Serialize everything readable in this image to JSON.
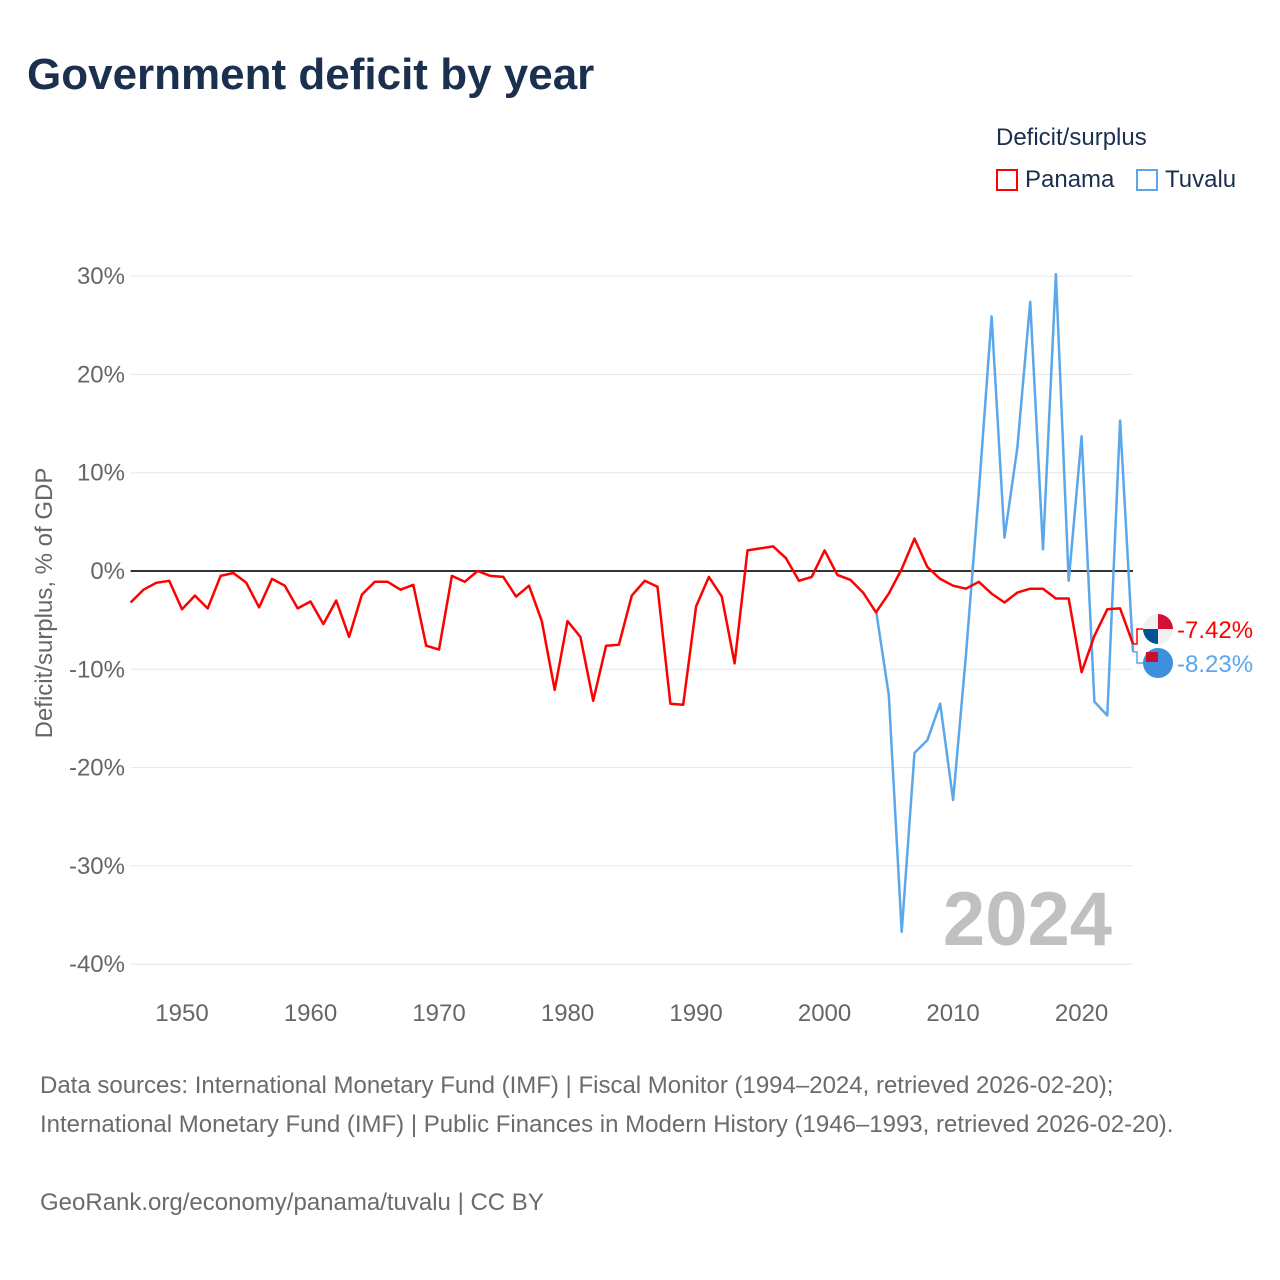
{
  "title": "Government deficit by year",
  "legend": {
    "title": "Deficit/surplus",
    "items": [
      {
        "label": "Panama",
        "color": "#ff0000"
      },
      {
        "label": "Tuvalu",
        "color": "#5ba7ea"
      }
    ]
  },
  "footer": {
    "sources": "Data sources: International Monetary Fund (IMF) | Fiscal Monitor (1994–2024, retrieved 2026-02-20); International Monetary Fund (IMF) | Public Finances in Modern History (1946–1993, retrieved 2026-02-20).",
    "credit": "GeoRank.org/economy/panama/tuvalu | CC BY"
  },
  "chart_data": {
    "type": "line",
    "title": "Government deficit by year",
    "xlabel": "",
    "ylabel": "Deficit/surplus, % of GDP",
    "xlim": [
      1946,
      2024
    ],
    "ylim": [
      -40,
      30
    ],
    "xticks": [
      1950,
      1960,
      1970,
      1980,
      1990,
      2000,
      2010,
      2020
    ],
    "yticks": [
      30,
      20,
      10,
      0,
      -10,
      -20,
      -30,
      -40
    ],
    "ytick_labels": [
      "30%",
      "20%",
      "10%",
      "0%",
      "-10%",
      "-20%",
      "-30%",
      "-40%"
    ],
    "watermark_year": "2024",
    "grid": true,
    "legend_position": "top-right",
    "series": [
      {
        "name": "Panama",
        "color": "#ff0000",
        "end_label": "-7.42%",
        "start_year": 1946,
        "values": [
          -3.2,
          -1.9,
          -1.2,
          -1.0,
          -3.9,
          -2.5,
          -3.8,
          -0.5,
          -0.2,
          -1.2,
          -3.7,
          -0.8,
          -1.5,
          -3.8,
          -3.1,
          -5.4,
          -3.0,
          -6.7,
          -2.4,
          -1.1,
          -1.1,
          -1.9,
          -1.4,
          -7.6,
          -8.0,
          -0.5,
          -1.1,
          0.0,
          -0.5,
          -0.6,
          -2.6,
          -1.5,
          -5.1,
          -12.1,
          -5.1,
          -6.7,
          -13.2,
          -7.6,
          -7.5,
          -2.5,
          -1.0,
          -1.6,
          -13.5,
          -13.6,
          -3.6,
          -0.6,
          -2.6,
          -9.4,
          2.1,
          2.3,
          2.5,
          1.3,
          -1.0,
          -0.6,
          2.1,
          -0.4,
          -0.9,
          -2.2,
          -4.2,
          -2.3,
          0.2,
          3.3,
          0.4,
          -0.8,
          -1.5,
          -1.8,
          -1.1,
          -2.3,
          -3.2,
          -2.2,
          -1.8,
          -1.8,
          -2.8,
          -2.8,
          -10.3,
          -6.6,
          -3.9,
          -3.8,
          -7.42
        ]
      },
      {
        "name": "Tuvalu",
        "color": "#5ba7ea",
        "end_label": "-8.23%",
        "start_year": 2004,
        "values": [
          -4.0,
          -12.6,
          -36.7,
          -18.5,
          -17.2,
          -13.5,
          -23.3,
          -8.6,
          8.0,
          25.9,
          3.4,
          12.5,
          27.4,
          2.2,
          30.2,
          -1.0,
          13.7,
          -13.3,
          -14.7,
          15.3,
          -8.23
        ]
      }
    ]
  }
}
